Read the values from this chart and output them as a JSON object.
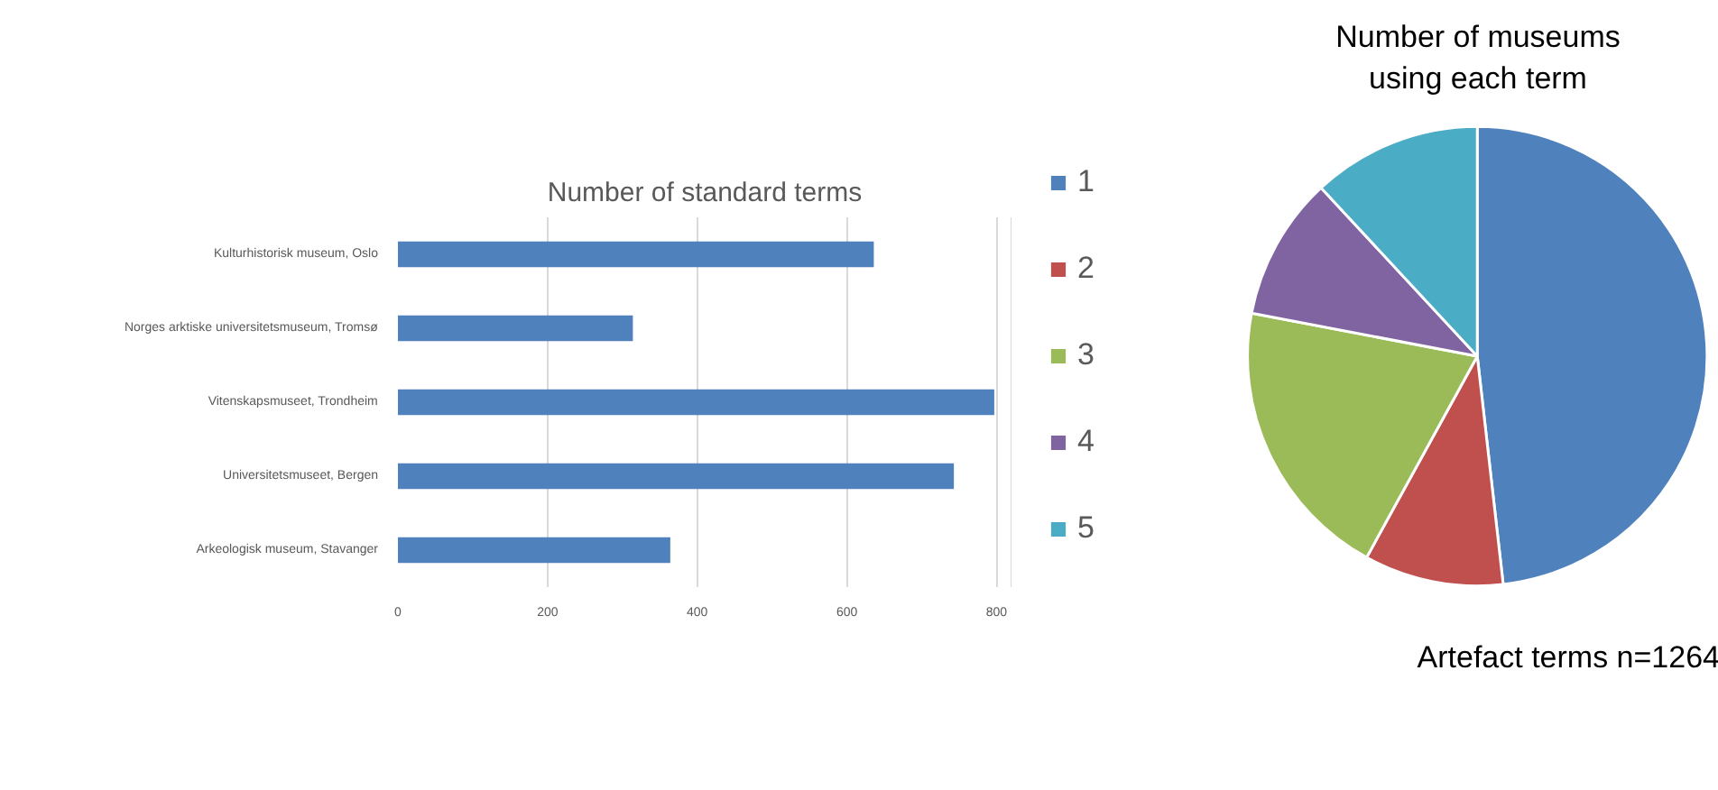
{
  "chart_data": [
    {
      "type": "bar",
      "orientation": "horizontal",
      "title": "Number of standard terms",
      "categories": [
        "Kulturhistorisk museum, Oslo",
        "Norges arktiske universitetsmuseum, Tromsø",
        "Vitenskapsmuseet, Trondheim",
        "Universitetsmuseet, Bergen",
        "Arkeologisk museum, Stavanger"
      ],
      "values": [
        636,
        314,
        797,
        743,
        364
      ],
      "color": "#4f81bd",
      "xlim": [
        0,
        820
      ],
      "xticks": [
        0,
        200,
        400,
        600,
        800
      ],
      "grid": "x"
    },
    {
      "type": "pie",
      "title": "Number of museums\nusing each term",
      "categories": [
        "1",
        "2",
        "3",
        "4",
        "5"
      ],
      "values": [
        48.2,
        9.8,
        20.0,
        10.1,
        11.9
      ],
      "colors": [
        "#4f81bd",
        "#c0504d",
        "#9bbb59",
        "#8064a2",
        "#4bacc6"
      ],
      "legend": "left",
      "annotations": [
        "Artefact terms n=1264"
      ]
    }
  ]
}
